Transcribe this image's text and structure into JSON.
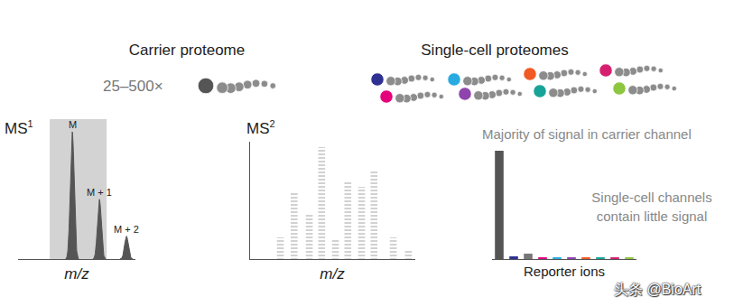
{
  "diagram": {
    "carrier": {
      "title": "Carrier proteome",
      "amount": "25–500×"
    },
    "single_cell": {
      "title": "Single-cell proteomes",
      "colors": [
        "#2e3192",
        "#29abe2",
        "#f15a24",
        "#d6206f",
        "#e4007c",
        "#8e44ad",
        "#17a398",
        "#8dc63f"
      ]
    },
    "watermark": "头条 @BioArt"
  },
  "chart_data": [
    {
      "type": "area",
      "title": {
        "text": "MS",
        "sup": "1"
      },
      "x_label": "m/z",
      "peaks": [
        {
          "label": "M",
          "x": 0,
          "value": 100
        },
        {
          "label": "M + 1",
          "x": 1,
          "value": 47
        },
        {
          "label": "M + 2",
          "x": 2,
          "value": 18
        }
      ],
      "highlight": [
        -0.83,
        1.27
      ],
      "xlim": [
        -2,
        2.33
      ],
      "ylim": [
        0,
        110
      ],
      "tick_labels": false,
      "color": "#555555"
    },
    {
      "type": "bar",
      "title": {
        "text": "MS",
        "sup": "2"
      },
      "x_label": "m/z",
      "x": [
        2.2,
        3.2,
        4.3,
        5.2,
        6.2,
        7.1,
        8.1,
        9.0,
        10.4,
        11.5
      ],
      "values": [
        24,
        75,
        49,
        124,
        21,
        87,
        80,
        97,
        24,
        11
      ],
      "xlim": [
        0,
        12
      ],
      "ylim": [
        0,
        130
      ],
      "tick_labels": false,
      "color": "#555555"
    },
    {
      "type": "bar",
      "x_label": "Reporter ions",
      "categories": [
        null,
        null,
        null,
        null,
        null,
        null,
        null,
        null,
        null,
        null
      ],
      "values": [
        120,
        3,
        6,
        2,
        2,
        2,
        2,
        2,
        2,
        2
      ],
      "colors": [
        "#555555",
        "#2e3192",
        "#777777",
        "#e4007c",
        "#29abe2",
        "#8e44ad",
        "#f15a24",
        "#17a398",
        "#d6206f",
        "#8dc63f"
      ],
      "ylim": [
        0,
        130
      ],
      "tick_labels": false,
      "annotations": [
        "Majority of signal in carrier channel",
        "Single-cell channels\ncontain little signal"
      ]
    }
  ]
}
